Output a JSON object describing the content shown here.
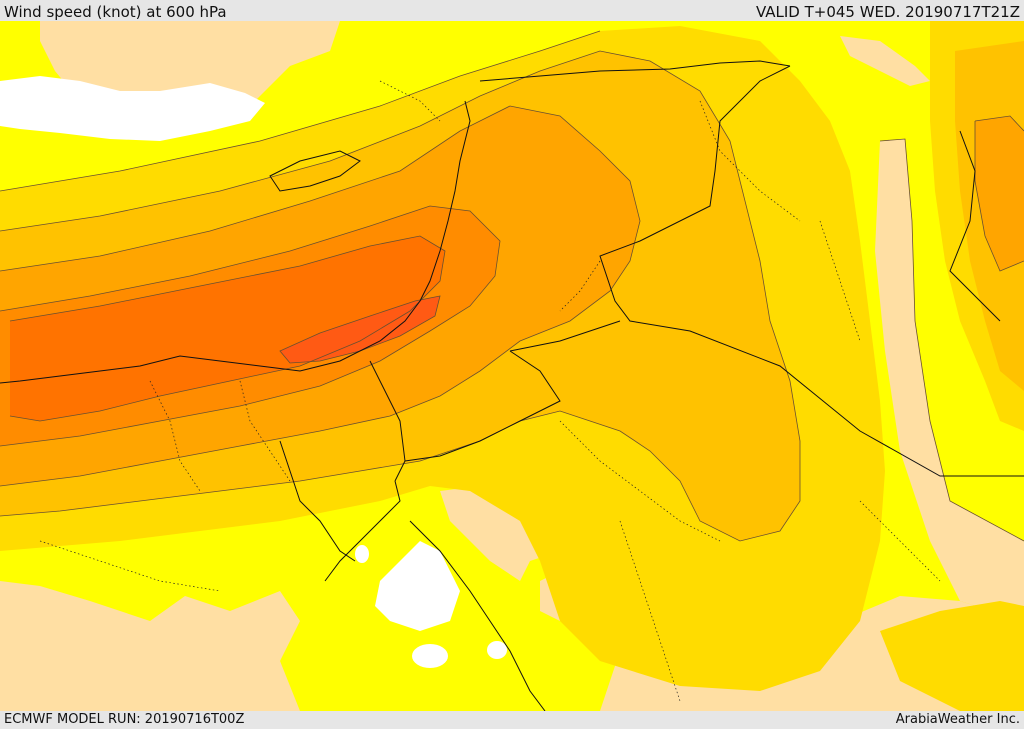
{
  "header": {
    "title": "Wind speed (knot) at 600 hPa",
    "valid": "VALID T+045 WED. 20190717T21Z"
  },
  "footer": {
    "model_run": "ECMWF MODEL RUN: 20190716T00Z",
    "credit": "ArabiaWeather Inc."
  },
  "colors": {
    "lowest": "#ffffff",
    "low": "#ffdfa3",
    "yellow": "#ffff00",
    "gold": "#ffdc00",
    "amber": "#ffc200",
    "orange_light": "#ffa500",
    "orange": "#ff8c00",
    "orange_dark": "#ff7300",
    "red_orange": "#ff5a14"
  },
  "map": {
    "region": "Eastern Mediterranean and Middle East",
    "features": [
      "contour-lines",
      "country-borders",
      "coastlines",
      "province-boundaries"
    ]
  }
}
